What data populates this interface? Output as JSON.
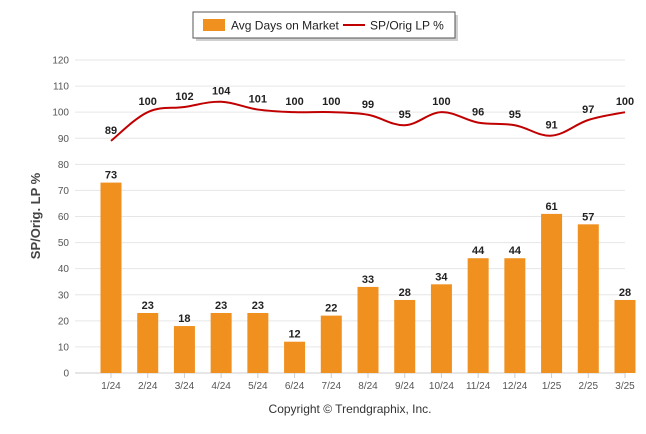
{
  "chart_data": {
    "type": "bar",
    "categories": [
      "1/24",
      "2/24",
      "3/24",
      "4/24",
      "5/24",
      "6/24",
      "7/24",
      "8/24",
      "9/24",
      "10/24",
      "11/24",
      "12/24",
      "1/25",
      "2/25",
      "3/25"
    ],
    "series": [
      {
        "name": "Avg Days on Market",
        "type": "bar",
        "color": "#F0901E",
        "values": [
          73,
          23,
          18,
          23,
          23,
          12,
          22,
          33,
          28,
          34,
          44,
          44,
          61,
          57,
          28
        ]
      },
      {
        "name": "SP/Orig LP %",
        "type": "line",
        "color": "#C00000",
        "values": [
          89,
          100,
          102,
          104,
          101,
          100,
          100,
          99,
          95,
          100,
          96,
          95,
          91,
          97,
          100
        ]
      }
    ],
    "ylabel": "SP/Orig. LP %",
    "yticks": [
      0,
      10,
      20,
      30,
      40,
      50,
      60,
      70,
      80,
      90,
      100,
      110,
      120
    ],
    "ylim": [
      0,
      120
    ],
    "grid": true,
    "legend_position": "top-center",
    "credit": "Copyright © Trendgraphix, Inc."
  }
}
